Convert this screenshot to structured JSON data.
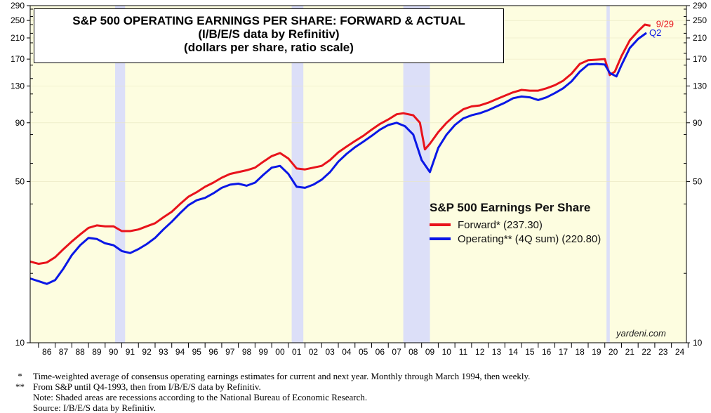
{
  "title": {
    "line1": "S&P 500 OPERATING EARNINGS PER SHARE: FORWARD & ACTUAL",
    "line2": "(I/B/E/S data by Refinitiv)",
    "line3": "(dollars per share, ratio scale)"
  },
  "legend": {
    "title": "S&P 500 Earnings Per Share",
    "forward_label": "Forward* (237.30)",
    "operating_label": "Operating** (4Q sum) (220.80)"
  },
  "end_labels": {
    "forward": "9/29",
    "operating": "Q2"
  },
  "brand": "yardeni.com",
  "notes": [
    {
      "mark": "*",
      "text": "Time-weighted average of consensus operating earnings estimates for current and next year. Monthly through March 1994, then weekly."
    },
    {
      "mark": "**",
      "text": "From S&P until Q4-1993, then from I/B/E/S data by Refinitiv."
    },
    {
      "mark": "",
      "text": "Note: Shaded areas are recessions according to the National Bureau of Economic Research."
    },
    {
      "mark": "",
      "text": "Source: I/B/E/S data by Refinitiv."
    }
  ],
  "colors": {
    "plot_background": "#fdfde0",
    "recession": "#dcdff8",
    "forward": "#e8131b",
    "operating": "#0a17e6"
  },
  "chart_data": {
    "type": "line",
    "y_scale": "log",
    "ylim": [
      10,
      290
    ],
    "yticks": [
      10,
      50,
      90,
      130,
      170,
      210,
      250,
      290
    ],
    "xlim": [
      1985.5,
      2024.9
    ],
    "xtick_labels": [
      "86",
      "87",
      "88",
      "89",
      "90",
      "91",
      "92",
      "93",
      "94",
      "95",
      "96",
      "97",
      "98",
      "99",
      "00",
      "01",
      "02",
      "03",
      "04",
      "05",
      "06",
      "07",
      "08",
      "09",
      "10",
      "11",
      "12",
      "13",
      "14",
      "15",
      "16",
      "17",
      "18",
      "19",
      "20",
      "21",
      "22",
      "23",
      "24"
    ],
    "recessions": [
      [
        1990.6,
        1991.2
      ],
      [
        2001.2,
        2001.9
      ],
      [
        2007.9,
        2009.5
      ],
      [
        2020.1,
        2020.3
      ]
    ],
    "series": [
      {
        "name": "Forward* (237.30)",
        "color": "#e8131b",
        "points": [
          [
            1985.5,
            22.5
          ],
          [
            1986.0,
            22.0
          ],
          [
            1986.5,
            22.3
          ],
          [
            1987.0,
            23.5
          ],
          [
            1987.5,
            25.5
          ],
          [
            1988.0,
            27.5
          ],
          [
            1988.5,
            29.5
          ],
          [
            1989.0,
            31.5
          ],
          [
            1989.5,
            32.3
          ],
          [
            1990.0,
            32.0
          ],
          [
            1990.5,
            32.0
          ],
          [
            1991.0,
            30.5
          ],
          [
            1991.5,
            30.5
          ],
          [
            1992.0,
            31.0
          ],
          [
            1992.5,
            32.0
          ],
          [
            1993.0,
            33.0
          ],
          [
            1993.5,
            35.0
          ],
          [
            1994.0,
            37.0
          ],
          [
            1994.5,
            40.0
          ],
          [
            1995.0,
            43.0
          ],
          [
            1995.5,
            45.0
          ],
          [
            1996.0,
            47.5
          ],
          [
            1996.5,
            49.5
          ],
          [
            1997.0,
            52.0
          ],
          [
            1997.5,
            54.0
          ],
          [
            1998.0,
            55.0
          ],
          [
            1998.5,
            56.0
          ],
          [
            1999.0,
            57.5
          ],
          [
            1999.5,
            61.0
          ],
          [
            2000.0,
            64.5
          ],
          [
            2000.5,
            66.5
          ],
          [
            2001.0,
            63.0
          ],
          [
            2001.5,
            57.0
          ],
          [
            2002.0,
            56.5
          ],
          [
            2002.5,
            57.5
          ],
          [
            2003.0,
            58.5
          ],
          [
            2003.5,
            62.0
          ],
          [
            2004.0,
            67.0
          ],
          [
            2004.5,
            71.0
          ],
          [
            2005.0,
            75.0
          ],
          [
            2005.5,
            79.0
          ],
          [
            2006.0,
            84.0
          ],
          [
            2006.5,
            89.0
          ],
          [
            2007.0,
            93.0
          ],
          [
            2007.5,
            98.0
          ],
          [
            2007.9,
            99.0
          ],
          [
            2008.5,
            97.0
          ],
          [
            2008.9,
            90.0
          ],
          [
            2009.2,
            69.0
          ],
          [
            2009.5,
            73.0
          ],
          [
            2010.0,
            82.0
          ],
          [
            2010.5,
            90.0
          ],
          [
            2011.0,
            97.0
          ],
          [
            2011.5,
            103.0
          ],
          [
            2012.0,
            106.0
          ],
          [
            2012.5,
            107.0
          ],
          [
            2013.0,
            110.0
          ],
          [
            2013.5,
            114.0
          ],
          [
            2014.0,
            118.0
          ],
          [
            2014.5,
            122.0
          ],
          [
            2015.0,
            125.0
          ],
          [
            2015.5,
            124.0
          ],
          [
            2016.0,
            124.0
          ],
          [
            2016.5,
            127.0
          ],
          [
            2017.0,
            131.0
          ],
          [
            2017.5,
            137.0
          ],
          [
            2018.0,
            147.0
          ],
          [
            2018.5,
            162.0
          ],
          [
            2019.0,
            168.0
          ],
          [
            2019.5,
            169.0
          ],
          [
            2020.0,
            170.0
          ],
          [
            2020.3,
            145.0
          ],
          [
            2020.6,
            150.0
          ],
          [
            2021.0,
            175.0
          ],
          [
            2021.5,
            205.0
          ],
          [
            2022.0,
            225.0
          ],
          [
            2022.4,
            240.0
          ],
          [
            2022.74,
            237.3
          ]
        ]
      },
      {
        "name": "Operating** (4Q sum) (220.80)",
        "color": "#0a17e6",
        "points": [
          [
            1985.5,
            19.0
          ],
          [
            1986.0,
            18.5
          ],
          [
            1986.5,
            18.0
          ],
          [
            1987.0,
            18.7
          ],
          [
            1987.5,
            21.0
          ],
          [
            1988.0,
            24.0
          ],
          [
            1988.5,
            26.5
          ],
          [
            1989.0,
            28.5
          ],
          [
            1989.5,
            28.2
          ],
          [
            1990.0,
            27.0
          ],
          [
            1990.5,
            26.5
          ],
          [
            1991.0,
            25.0
          ],
          [
            1991.5,
            24.5
          ],
          [
            1992.0,
            25.5
          ],
          [
            1992.5,
            26.8
          ],
          [
            1993.0,
            28.5
          ],
          [
            1993.5,
            31.0
          ],
          [
            1994.0,
            33.5
          ],
          [
            1994.5,
            36.5
          ],
          [
            1995.0,
            39.5
          ],
          [
            1995.5,
            41.5
          ],
          [
            1996.0,
            42.5
          ],
          [
            1996.5,
            44.5
          ],
          [
            1997.0,
            47.0
          ],
          [
            1997.5,
            48.5
          ],
          [
            1998.0,
            49.0
          ],
          [
            1998.5,
            48.0
          ],
          [
            1999.0,
            49.5
          ],
          [
            1999.5,
            53.5
          ],
          [
            2000.0,
            57.5
          ],
          [
            2000.5,
            58.5
          ],
          [
            2001.0,
            54.0
          ],
          [
            2001.5,
            47.5
          ],
          [
            2002.0,
            47.0
          ],
          [
            2002.5,
            48.5
          ],
          [
            2003.0,
            51.0
          ],
          [
            2003.5,
            55.0
          ],
          [
            2004.0,
            61.0
          ],
          [
            2004.5,
            66.0
          ],
          [
            2005.0,
            70.5
          ],
          [
            2005.5,
            74.5
          ],
          [
            2006.0,
            79.0
          ],
          [
            2006.5,
            84.0
          ],
          [
            2007.0,
            88.0
          ],
          [
            2007.5,
            90.0
          ],
          [
            2008.0,
            87.0
          ],
          [
            2008.5,
            80.0
          ],
          [
            2009.0,
            62.0
          ],
          [
            2009.5,
            55.0
          ],
          [
            2010.0,
            70.0
          ],
          [
            2010.5,
            80.0
          ],
          [
            2011.0,
            88.0
          ],
          [
            2011.5,
            94.0
          ],
          [
            2012.0,
            97.0
          ],
          [
            2012.5,
            99.0
          ],
          [
            2013.0,
            102.0
          ],
          [
            2013.5,
            106.0
          ],
          [
            2014.0,
            110.0
          ],
          [
            2014.5,
            115.0
          ],
          [
            2015.0,
            117.0
          ],
          [
            2015.5,
            116.0
          ],
          [
            2016.0,
            113.0
          ],
          [
            2016.5,
            116.0
          ],
          [
            2017.0,
            121.0
          ],
          [
            2017.5,
            127.0
          ],
          [
            2018.0,
            136.0
          ],
          [
            2018.5,
            150.0
          ],
          [
            2019.0,
            161.0
          ],
          [
            2019.5,
            162.0
          ],
          [
            2020.0,
            161.0
          ],
          [
            2020.3,
            148.0
          ],
          [
            2020.7,
            143.0
          ],
          [
            2021.0,
            160.0
          ],
          [
            2021.5,
            190.0
          ],
          [
            2022.0,
            208.0
          ],
          [
            2022.5,
            220.8
          ]
        ]
      }
    ]
  }
}
